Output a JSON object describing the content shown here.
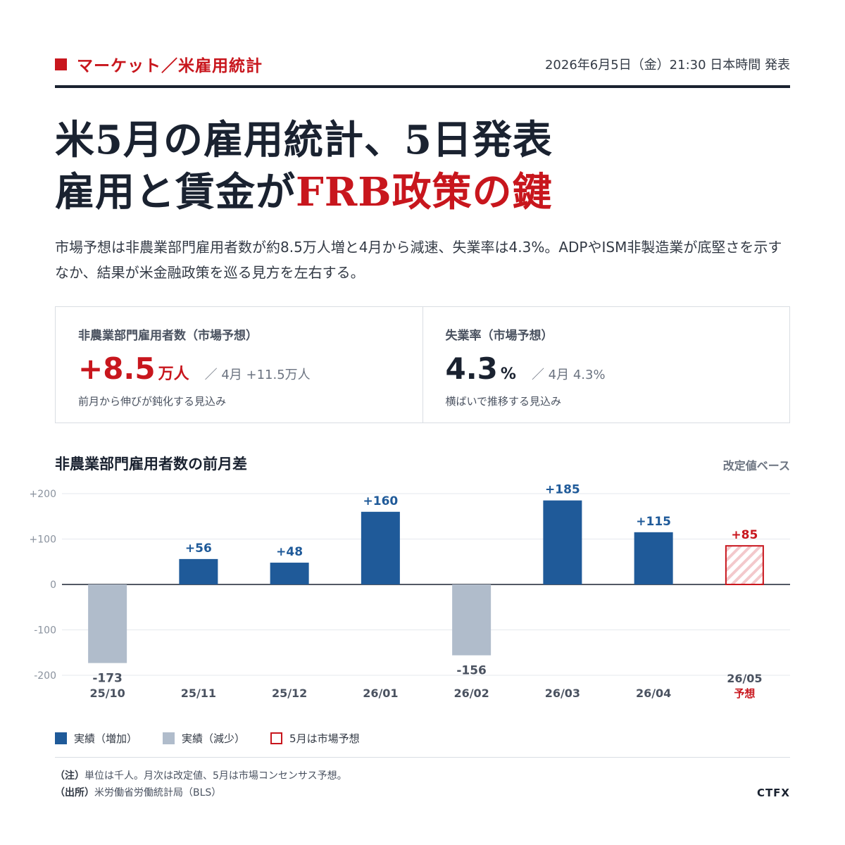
{
  "header": {
    "section": "マーケット／米雇用統計",
    "pubdate": "2026年6月5日（金）21:30 日本時間 発表"
  },
  "headline": {
    "line1": "米5月の雇用統計、5日発表",
    "line2_prefix": "雇用と賃金が",
    "line2_accent": "FRB政策の鍵"
  },
  "lead": "市場予想は非農業部門雇用者数が約8.5万人増と4月から減速、失業率は4.3%。ADPやISM非製造業が底堅さを示すなか、結果が米金融政策を巡る見方を左右する。",
  "stats": [
    {
      "label": "非農業部門雇用者数（市場予想）",
      "value": "+8.5",
      "unit": "万人",
      "prev": "／ 4月 +11.5万人",
      "note": "前月から伸びが鈍化する見込み"
    },
    {
      "label": "失業率（市場予想）",
      "value": "4.3",
      "unit": "%",
      "prev": "／ 4月 4.3%",
      "note": "横ばいで推移する見込み"
    }
  ],
  "chart": {
    "title": "非農業部門雇用者数の前月差",
    "basis": "改定値ベース"
  },
  "colors": {
    "accent": "#c8161d",
    "increase": "#1f5a99",
    "decrease": "#b0bccb",
    "text": "#1a2230"
  },
  "chart_data": {
    "type": "bar",
    "categories": [
      "25/10",
      "25/11",
      "25/12",
      "26/01",
      "26/02",
      "26/03",
      "26/04",
      "26/05"
    ],
    "values": [
      -173,
      56,
      48,
      160,
      -156,
      185,
      115,
      85
    ],
    "value_labels": [
      "-173",
      "+56",
      "+48",
      "+160",
      "-156",
      "+185",
      "+115",
      "+85"
    ],
    "forecast_flags": [
      false,
      false,
      false,
      false,
      false,
      false,
      false,
      true
    ],
    "forecast_label": "予想",
    "yticks": [
      200,
      100,
      0,
      -100,
      -200
    ],
    "ytick_labels": [
      "+200",
      "+100",
      "0",
      "-100",
      "-200"
    ],
    "ylim": [
      -200,
      200
    ],
    "grid": true,
    "title": "非農業部門雇用者数の前月差"
  },
  "legend": {
    "increase": "実績（増加）",
    "decrease": "実績（減少）",
    "forecast": "5月は市場予想"
  },
  "footnotes": {
    "note_label": "（注）",
    "note_text": "単位は千人。月次は改定値、5月は市場コンセンサス予想。",
    "source_label": "（出所）",
    "source_text": "米労働省労働統計局（BLS）"
  },
  "brand": "CTFX"
}
